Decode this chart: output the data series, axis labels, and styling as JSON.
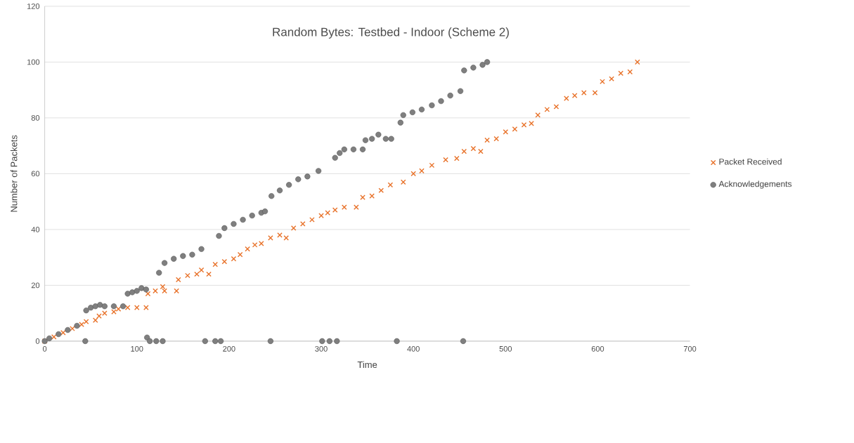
{
  "chart_data": {
    "type": "scatter",
    "title": "Random Bytes: Testbed - Indoor (Scheme 2)",
    "xlabel": "Time",
    "ylabel": "Number of Packets",
    "xlim": [
      0,
      700
    ],
    "xticks": [
      0,
      100,
      200,
      300,
      400,
      500,
      600,
      700
    ],
    "ylim": [
      0,
      120
    ],
    "yticks": [
      0,
      20,
      40,
      60,
      80,
      100,
      120
    ],
    "grid": "y",
    "legend": "right",
    "series": [
      {
        "name": "Packet Received",
        "color": "#e8722a",
        "marker": "cross",
        "x": [
          0,
          10,
          20,
          30,
          40,
          45,
          55,
          59,
          65,
          75,
          80,
          90,
          100,
          110,
          112,
          120,
          128,
          130,
          143,
          145,
          155,
          165,
          170,
          178,
          185,
          195,
          205,
          212,
          220,
          228,
          235,
          245,
          255,
          262,
          270,
          280,
          290,
          300,
          307,
          315,
          325,
          338,
          345,
          355,
          365,
          375,
          389,
          400,
          409,
          420,
          435,
          447,
          455,
          465,
          473,
          480,
          490,
          500,
          510,
          520,
          528,
          535,
          545,
          555,
          566,
          575,
          585,
          597,
          605,
          615,
          625,
          635,
          643
        ],
        "values": [
          0,
          1.5,
          3,
          4.5,
          6,
          7,
          7.5,
          9,
          10,
          10.5,
          11.5,
          12,
          12,
          12,
          17,
          18,
          19.5,
          18,
          18,
          22,
          23.5,
          24,
          25.5,
          24,
          27.5,
          28.5,
          29.5,
          31,
          33,
          34.5,
          35,
          37,
          38,
          37,
          40.5,
          42,
          43.5,
          45,
          46,
          47,
          48,
          48,
          51.5,
          52,
          54,
          56,
          57,
          60,
          61,
          63,
          65,
          65.5,
          68,
          69,
          68,
          72,
          72.5,
          75,
          76,
          77.5,
          78,
          81,
          83,
          84,
          87,
          88,
          89,
          89,
          93,
          94,
          96,
          96.5,
          100
        ]
      },
      {
        "name": "Acknowledgements",
        "color": "#7f7f7f",
        "marker": "circle",
        "x": [
          0,
          5,
          15,
          25,
          35,
          44,
          45,
          50,
          55,
          60,
          65,
          75,
          85,
          90,
          95,
          100,
          105,
          110,
          111,
          114,
          121,
          128,
          124,
          130,
          140,
          150,
          160,
          170,
          174,
          185,
          189,
          191,
          195,
          205,
          215,
          225,
          235,
          239,
          245,
          246,
          255,
          265,
          275,
          285,
          297,
          301,
          309,
          317,
          315,
          320,
          325,
          335,
          345,
          348,
          355,
          362,
          370,
          376,
          382,
          386,
          389,
          399,
          409,
          420,
          430,
          440,
          451,
          454,
          455,
          465,
          475,
          480
        ],
        "values": [
          0,
          1,
          2.5,
          4,
          5.5,
          0,
          11,
          12,
          12.5,
          13,
          12.5,
          12.5,
          12.5,
          17,
          17.5,
          18,
          19,
          18.5,
          1.3,
          0,
          0,
          0,
          24.5,
          28,
          29.5,
          30.5,
          31,
          33,
          0,
          0,
          37.7,
          0,
          40.5,
          42,
          43.5,
          45,
          46,
          46.5,
          0,
          52,
          54,
          56,
          58,
          59,
          61,
          0,
          0,
          0,
          65.7,
          67.4,
          68.7,
          68.7,
          68.7,
          72,
          72.5,
          74,
          72.5,
          72.5,
          0,
          78.3,
          81,
          82,
          83,
          84.5,
          86,
          88,
          89.6,
          0,
          97,
          98,
          99,
          100
        ]
      }
    ]
  }
}
